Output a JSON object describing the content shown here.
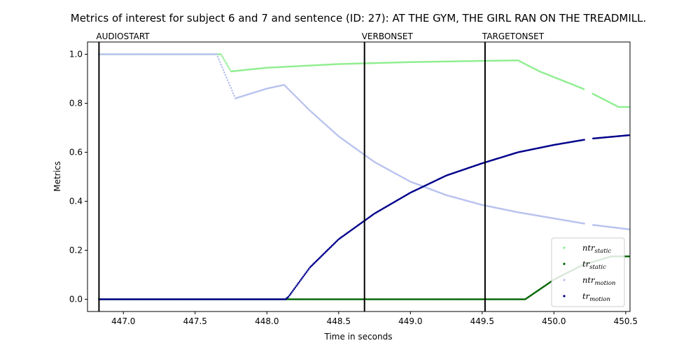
{
  "chart_data": {
    "type": "scatter",
    "title": "Metrics of interest for subject 6 and 7 and sentence (ID: 27): AT THE GYM, THE GIRL RAN ON THE TREADMILL.",
    "xlabel": "Time in seconds",
    "ylabel": "Metrics",
    "xlim": [
      446.75,
      450.53
    ],
    "ylim": [
      -0.05,
      1.05
    ],
    "xticks": [
      "447.0",
      "447.5",
      "448.0",
      "448.5",
      "449.0",
      "449.5",
      "450.0",
      "450.5"
    ],
    "yticks": [
      "0.0",
      "0.2",
      "0.4",
      "0.6",
      "0.8",
      "1.0"
    ],
    "grid": false,
    "legend_position": "bottom-right",
    "events": [
      {
        "label": "AUDIOSTART",
        "x": 446.83
      },
      {
        "label": "VERBONSET",
        "x": 448.68
      },
      {
        "label": "TARGETONSET",
        "x": 449.52
      }
    ],
    "series": [
      {
        "name": "ntr",
        "sub": "static",
        "color": "#90ee90",
        "points": [
          [
            446.83,
            1.0
          ],
          [
            447.45,
            1.0
          ],
          [
            447.55,
            1.0
          ],
          [
            447.68,
            1.0
          ],
          [
            447.75,
            0.93
          ],
          [
            448.0,
            0.945
          ],
          [
            448.5,
            0.96
          ],
          [
            449.0,
            0.968
          ],
          [
            449.5,
            0.973
          ],
          [
            449.75,
            0.975
          ],
          [
            449.9,
            0.93
          ],
          [
            450.2,
            0.86
          ],
          [
            450.45,
            0.785
          ],
          [
            450.53,
            0.785
          ]
        ]
      },
      {
        "name": "tr",
        "sub": "static",
        "color": "#006400",
        "points": [
          [
            446.83,
            0.0
          ],
          [
            449.2,
            0.0
          ],
          [
            449.8,
            0.0
          ],
          [
            450.0,
            0.08
          ],
          [
            450.2,
            0.14
          ],
          [
            450.4,
            0.175
          ],
          [
            450.53,
            0.175
          ]
        ]
      },
      {
        "name": "ntr",
        "sub": "motion",
        "color": "#b8c2ee",
        "points": [
          [
            446.83,
            1.0
          ],
          [
            447.45,
            1.0
          ],
          [
            447.65,
            1.0
          ],
          [
            447.78,
            0.82
          ],
          [
            448.0,
            0.86
          ],
          [
            448.12,
            0.875
          ],
          [
            448.3,
            0.77
          ],
          [
            448.5,
            0.665
          ],
          [
            448.75,
            0.56
          ],
          [
            449.0,
            0.48
          ],
          [
            449.25,
            0.425
          ],
          [
            449.5,
            0.385
          ],
          [
            449.75,
            0.355
          ],
          [
            450.0,
            0.33
          ],
          [
            450.25,
            0.305
          ],
          [
            450.53,
            0.285
          ]
        ]
      },
      {
        "name": "tr",
        "sub": "motion",
        "color": "#00008b",
        "points": [
          [
            446.83,
            0.0
          ],
          [
            448.13,
            0.0
          ],
          [
            448.15,
            0.01
          ],
          [
            448.3,
            0.13
          ],
          [
            448.5,
            0.245
          ],
          [
            448.75,
            0.35
          ],
          [
            449.0,
            0.435
          ],
          [
            449.25,
            0.505
          ],
          [
            449.5,
            0.555
          ],
          [
            449.75,
            0.6
          ],
          [
            450.0,
            0.63
          ],
          [
            450.25,
            0.655
          ],
          [
            450.53,
            0.67
          ]
        ]
      }
    ]
  }
}
